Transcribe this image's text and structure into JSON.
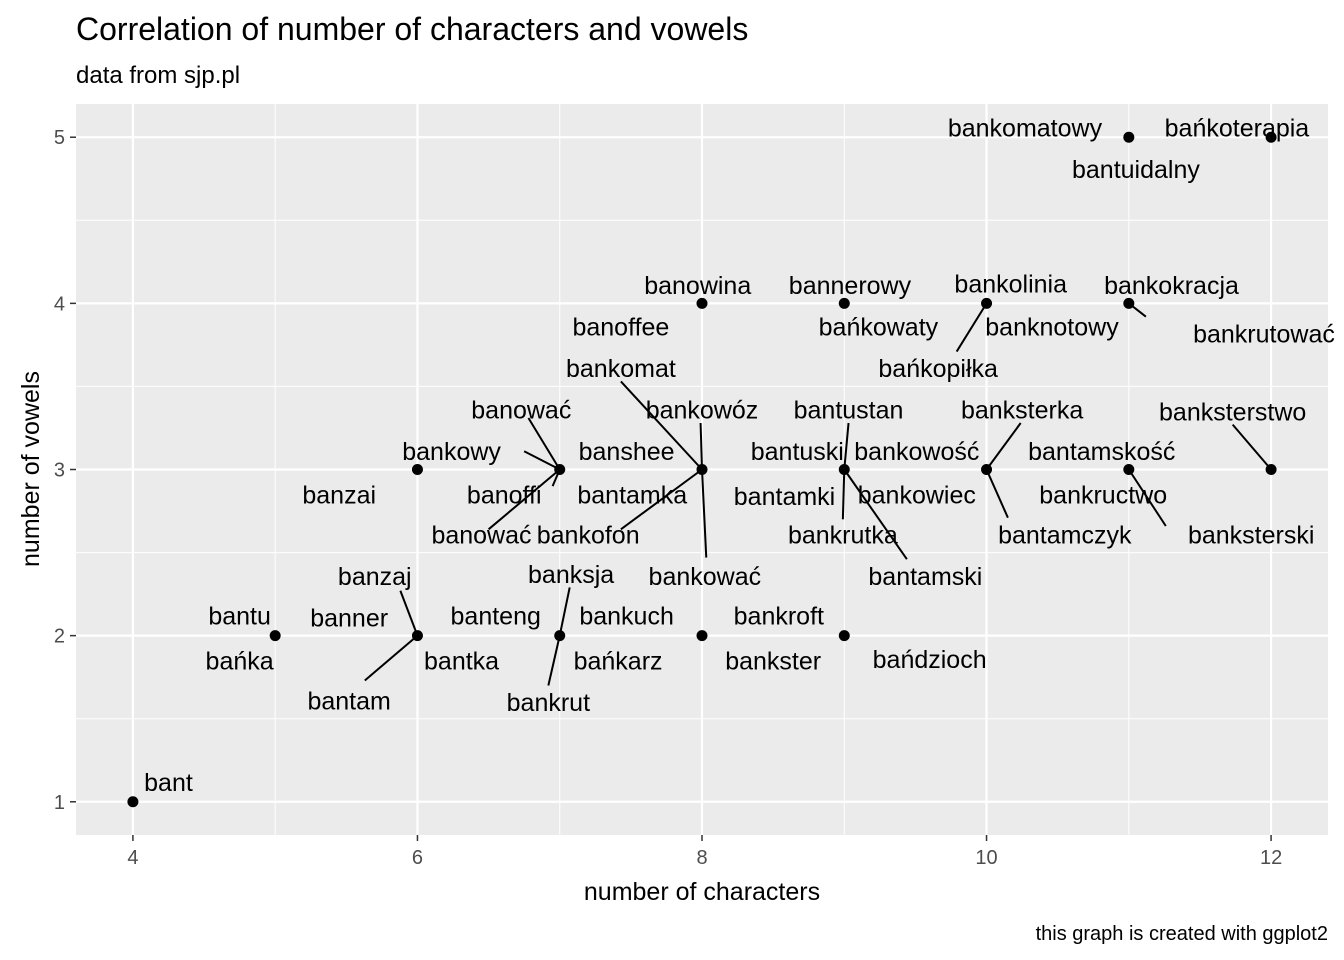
{
  "chart_data": {
    "type": "scatter",
    "title": "Correlation of number of characters and vowels",
    "subtitle": "data from sjp.pl",
    "xlabel": "number of characters",
    "ylabel": "number of vowels",
    "caption": "this graph is created with ggplot2",
    "xlim": [
      3.6,
      12.4
    ],
    "ylim": [
      0.8,
      5.2
    ],
    "x_ticks": [
      4,
      6,
      8,
      10,
      12
    ],
    "y_ticks": [
      1,
      2,
      3,
      4,
      5
    ],
    "grid": true,
    "panel_background": "#ebebeb",
    "grid_color": "#ffffff",
    "point_color": "#000000",
    "points": [
      {
        "x": 4,
        "y": 1
      },
      {
        "x": 5,
        "y": 2
      },
      {
        "x": 6,
        "y": 2
      },
      {
        "x": 6,
        "y": 3
      },
      {
        "x": 7,
        "y": 2
      },
      {
        "x": 7,
        "y": 3
      },
      {
        "x": 8,
        "y": 2
      },
      {
        "x": 8,
        "y": 3
      },
      {
        "x": 8,
        "y": 4
      },
      {
        "x": 9,
        "y": 2
      },
      {
        "x": 9,
        "y": 3
      },
      {
        "x": 9,
        "y": 4
      },
      {
        "x": 10,
        "y": 3
      },
      {
        "x": 10,
        "y": 4
      },
      {
        "x": 11,
        "y": 3
      },
      {
        "x": 11,
        "y": 4
      },
      {
        "x": 11,
        "y": 5
      },
      {
        "x": 12,
        "y": 3
      },
      {
        "x": 12,
        "y": 5
      }
    ],
    "labels": [
      {
        "text": "bant",
        "x": 4,
        "y": 1,
        "lx": 4.25,
        "ly": 1.12,
        "anchor": "middle"
      },
      {
        "text": "bantu",
        "x": 5,
        "y": 2,
        "lx": 4.75,
        "ly": 2.12,
        "anchor": "middle"
      },
      {
        "text": "bańka",
        "x": 5,
        "y": 2,
        "lx": 4.75,
        "ly": 1.85,
        "anchor": "middle"
      },
      {
        "text": "banner",
        "x": 6,
        "y": 2,
        "lx": 5.52,
        "ly": 2.11,
        "anchor": "middle"
      },
      {
        "text": "banzaj",
        "x": 6,
        "y": 2,
        "lx": 5.7,
        "ly": 2.36,
        "anchor": "middle",
        "line": [
          5.88,
          2.27,
          6,
          2
        ]
      },
      {
        "text": "bantka",
        "x": 6,
        "y": 2,
        "lx": 6.31,
        "ly": 1.85,
        "anchor": "middle"
      },
      {
        "text": "bantam",
        "x": 6,
        "y": 2,
        "lx": 5.52,
        "ly": 1.61,
        "anchor": "middle",
        "line": [
          5.63,
          1.73,
          6,
          2
        ]
      },
      {
        "text": "banzai",
        "x": 6,
        "y": 3,
        "lx": 5.45,
        "ly": 2.85,
        "anchor": "middle"
      },
      {
        "text": "bankowy",
        "x": 7,
        "y": 3,
        "lx": 6.24,
        "ly": 3.11,
        "anchor": "middle",
        "line": [
          6.75,
          3.11,
          7,
          3
        ]
      },
      {
        "text": "banować",
        "x": 7,
        "y": 3,
        "lx": 6.73,
        "ly": 3.36,
        "anchor": "middle",
        "line": [
          6.78,
          3.31,
          7,
          3
        ]
      },
      {
        "text": "banshee",
        "x": 7,
        "y": 3,
        "lx": 7.47,
        "ly": 3.11,
        "anchor": "middle"
      },
      {
        "text": "banoffi",
        "x": 7,
        "y": 3,
        "lx": 6.61,
        "ly": 2.85,
        "anchor": "middle",
        "line": [
          6.95,
          2.9,
          7,
          3
        ]
      },
      {
        "text": "bantamka",
        "x": 7,
        "y": 3,
        "lx": 7.51,
        "ly": 2.85,
        "anchor": "middle"
      },
      {
        "text": "banować",
        "x": 7,
        "y": 3,
        "lx": 6.45,
        "ly": 2.61,
        "anchor": "middle",
        "line": [
          6.5,
          2.64,
          7,
          3
        ]
      },
      {
        "text": "banteng",
        "x": 7,
        "y": 2,
        "lx": 6.55,
        "ly": 2.12,
        "anchor": "middle"
      },
      {
        "text": "banksja",
        "x": 7,
        "y": 2,
        "lx": 7.08,
        "ly": 2.37,
        "anchor": "middle",
        "line": [
          7.07,
          2.29,
          7,
          2
        ]
      },
      {
        "text": "bańkarz",
        "x": 7,
        "y": 2,
        "lx": 7.41,
        "ly": 1.85,
        "anchor": "middle"
      },
      {
        "text": "bankrut",
        "x": 7,
        "y": 2,
        "lx": 6.92,
        "ly": 1.6,
        "anchor": "middle",
        "line": [
          6.92,
          1.7,
          7,
          2
        ]
      },
      {
        "text": "bankomat",
        "x": 8,
        "y": 3,
        "lx": 7.43,
        "ly": 3.61,
        "anchor": "middle",
        "line": [
          7.43,
          3.53,
          8,
          3
        ]
      },
      {
        "text": "bankowóz",
        "x": 8,
        "y": 3,
        "lx": 8.0,
        "ly": 3.36,
        "anchor": "middle",
        "line": [
          7.99,
          3.28,
          8,
          3
        ]
      },
      {
        "text": "bantuski",
        "x": 8,
        "y": 3,
        "lx": 8.67,
        "ly": 3.11,
        "anchor": "middle"
      },
      {
        "text": "bantamki",
        "x": 8,
        "y": 3,
        "lx": 8.58,
        "ly": 2.84,
        "anchor": "middle"
      },
      {
        "text": "bankofon",
        "x": 8,
        "y": 3,
        "lx": 7.2,
        "ly": 2.61,
        "anchor": "middle",
        "line": [
          7.43,
          2.64,
          8,
          3
        ]
      },
      {
        "text": "bankować",
        "x": 8,
        "y": 3,
        "lx": 8.02,
        "ly": 2.36,
        "anchor": "middle",
        "line": [
          8.03,
          2.47,
          8,
          3
        ]
      },
      {
        "text": "bankuch",
        "x": 8,
        "y": 2,
        "lx": 7.47,
        "ly": 2.12,
        "anchor": "middle"
      },
      {
        "text": "bankroft",
        "x": 8,
        "y": 2,
        "lx": 8.54,
        "ly": 2.12,
        "anchor": "middle"
      },
      {
        "text": "bankster",
        "x": 8,
        "y": 2,
        "lx": 8.5,
        "ly": 1.85,
        "anchor": "middle"
      },
      {
        "text": "banowina",
        "x": 8,
        "y": 4,
        "lx": 7.97,
        "ly": 4.11,
        "anchor": "middle"
      },
      {
        "text": "banoffee",
        "x": 8,
        "y": 4,
        "lx": 7.43,
        "ly": 3.86,
        "anchor": "middle"
      },
      {
        "text": "bannerowy",
        "x": 9,
        "y": 4,
        "lx": 9.04,
        "ly": 4.11,
        "anchor": "middle"
      },
      {
        "text": "bańkowaty",
        "x": 9,
        "y": 4,
        "lx": 9.24,
        "ly": 3.86,
        "anchor": "middle"
      },
      {
        "text": "bantustan",
        "x": 9,
        "y": 3,
        "lx": 9.03,
        "ly": 3.36,
        "anchor": "middle",
        "line": [
          9.03,
          3.28,
          9,
          3
        ]
      },
      {
        "text": "bankowość",
        "x": 9,
        "y": 3,
        "lx": 9.51,
        "ly": 3.11,
        "anchor": "middle"
      },
      {
        "text": "bankowiec",
        "x": 9,
        "y": 3,
        "lx": 9.51,
        "ly": 2.85,
        "anchor": "middle"
      },
      {
        "text": "bankrutka",
        "x": 9,
        "y": 3,
        "lx": 8.99,
        "ly": 2.61,
        "anchor": "middle",
        "line": [
          8.99,
          2.7,
          9,
          3
        ]
      },
      {
        "text": "bantamski",
        "x": 9,
        "y": 3,
        "lx": 9.57,
        "ly": 2.36,
        "anchor": "middle",
        "line": [
          9.44,
          2.46,
          9,
          3
        ]
      },
      {
        "text": "bańdzioch",
        "x": 9,
        "y": 2,
        "lx": 9.6,
        "ly": 1.86,
        "anchor": "middle"
      },
      {
        "text": "bankolinia",
        "x": 10,
        "y": 4,
        "lx": 10.17,
        "ly": 4.12,
        "anchor": "middle"
      },
      {
        "text": "banknotowy",
        "x": 10,
        "y": 4,
        "lx": 10.46,
        "ly": 3.86,
        "anchor": "middle"
      },
      {
        "text": "bańkopiłka",
        "x": 10,
        "y": 4,
        "lx": 9.66,
        "ly": 3.61,
        "anchor": "middle",
        "line": [
          9.79,
          3.71,
          10,
          4
        ]
      },
      {
        "text": "banksterka",
        "x": 10,
        "y": 3,
        "lx": 10.25,
        "ly": 3.36,
        "anchor": "middle",
        "line": [
          10.24,
          3.28,
          10,
          3
        ]
      },
      {
        "text": "bantamskość",
        "x": 10,
        "y": 3,
        "lx": 10.81,
        "ly": 3.11,
        "anchor": "middle"
      },
      {
        "text": "bankructwo",
        "x": 10,
        "y": 3,
        "lx": 10.82,
        "ly": 2.85,
        "anchor": "middle"
      },
      {
        "text": "bantamczyk",
        "x": 10,
        "y": 3,
        "lx": 10.55,
        "ly": 2.61,
        "anchor": "middle",
        "line": [
          10.15,
          2.71,
          10,
          3
        ]
      },
      {
        "text": "bankokracja",
        "x": 11,
        "y": 4,
        "lx": 11.3,
        "ly": 4.11,
        "anchor": "middle"
      },
      {
        "text": "bankrutować",
        "x": 11,
        "y": 4,
        "lx": 11.95,
        "ly": 3.82,
        "anchor": "middle",
        "line": [
          11.12,
          3.92,
          11,
          4
        ]
      },
      {
        "text": "bankomatowy",
        "x": 11,
        "y": 5,
        "lx": 10.27,
        "ly": 5.06,
        "anchor": "middle"
      },
      {
        "text": "bańkoterapia",
        "x": 11,
        "y": 5,
        "lx": 11.76,
        "ly": 5.06,
        "anchor": "middle"
      },
      {
        "text": "bantuidalny",
        "x": 11,
        "y": 5,
        "lx": 11.05,
        "ly": 4.81,
        "anchor": "middle"
      },
      {
        "text": "banksterstwo",
        "x": 12,
        "y": 3,
        "lx": 11.73,
        "ly": 3.35,
        "anchor": "middle",
        "line": [
          11.73,
          3.27,
          12,
          3
        ]
      },
      {
        "text": "banksterski",
        "x": 11,
        "y": 3,
        "lx": 11.86,
        "ly": 2.61,
        "anchor": "middle",
        "line": [
          11.26,
          2.66,
          11,
          3
        ]
      }
    ]
  }
}
